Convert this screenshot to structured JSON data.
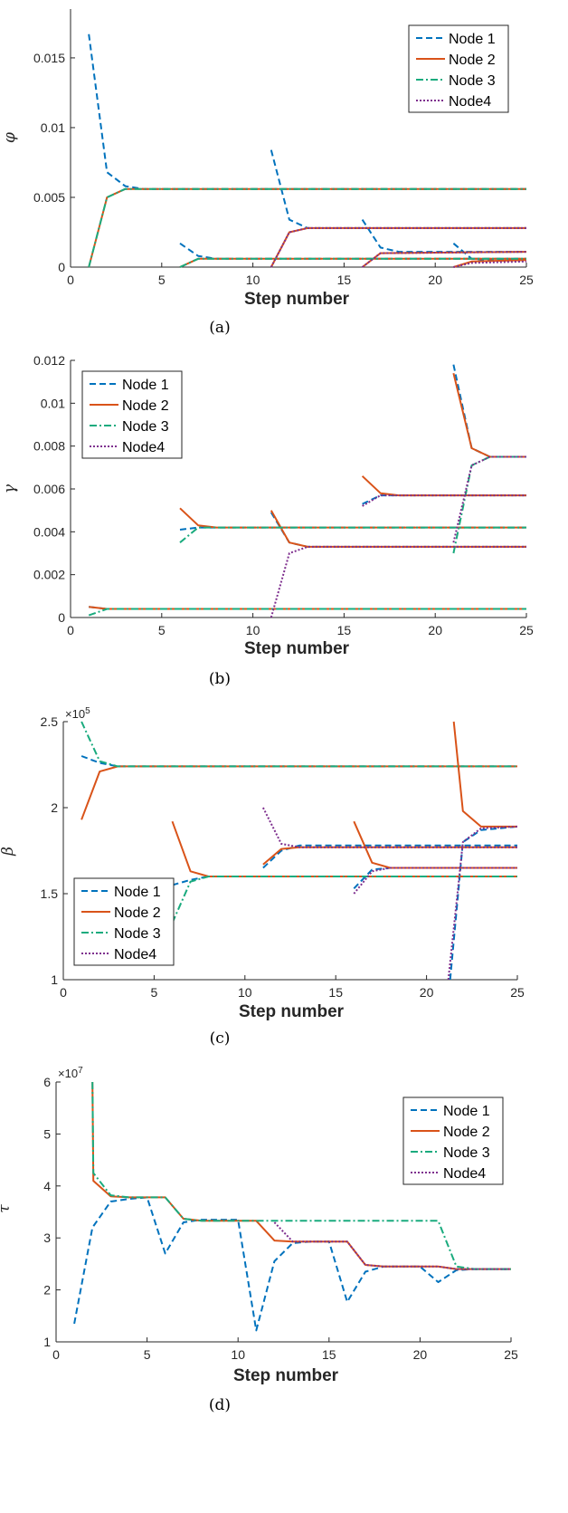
{
  "styles": {
    "Node 1": {
      "color": "#0072BD",
      "dash": "7,4"
    },
    "Node 2": {
      "color": "#D95319",
      "dash": ""
    },
    "Node 3": {
      "color": "#1AAB7E",
      "dash": "8,3,2,3"
    },
    "Node4": {
      "color": "#7E2F8E",
      "dash": "2,2"
    },
    "Node1-alt": {
      "color": "#3A8FDB"
    },
    "Node2-alt": {
      "color": "#E8901C"
    }
  },
  "chart_data": [
    {
      "type": "line",
      "caption": "(a)",
      "xlabel": "Step number",
      "ylabel": "φ",
      "exponent": "",
      "xlim": [
        0,
        25
      ],
      "ylim": [
        0,
        0.0185
      ],
      "xticks": [
        "0",
        "5",
        "10",
        "15",
        "20",
        "25"
      ],
      "yticks": [
        {
          "v": 0,
          "label": "0"
        },
        {
          "v": 0.005,
          "label": "0.005"
        },
        {
          "v": 0.01,
          "label": "0.01"
        },
        {
          "v": 0.015,
          "label": "0.015"
        }
      ],
      "legend": {
        "position": "top-right",
        "entries": [
          "Node 1",
          "Node 2",
          "Node 3",
          "Node4"
        ]
      },
      "series": [
        {
          "name": "Node 1",
          "x": [
            1,
            2,
            3,
            4,
            25
          ],
          "y": [
            0.0167,
            0.0068,
            0.0058,
            0.0056,
            0.0056
          ]
        },
        {
          "name": "Node 1",
          "x": [
            6,
            7,
            8,
            25
          ],
          "y": [
            0.0017,
            0.0008,
            0.0006,
            0.0006
          ]
        },
        {
          "name": "Node 1",
          "x": [
            11,
            12,
            13,
            25
          ],
          "y": [
            0.0084,
            0.0034,
            0.0028,
            0.0028
          ]
        },
        {
          "name": "Node 1",
          "x": [
            16,
            17,
            18,
            25
          ],
          "y": [
            0.0034,
            0.0014,
            0.0011,
            0.0011
          ]
        },
        {
          "name": "Node 1",
          "x": [
            21,
            22,
            23,
            25
          ],
          "y": [
            0.0017,
            0.0006,
            0.0005,
            0.0005
          ]
        },
        {
          "name": "Node 2",
          "x": [
            1,
            2,
            3,
            25
          ],
          "y": [
            0,
            0.005,
            0.0056,
            0.0056
          ]
        },
        {
          "name": "Node 2",
          "x": [
            6,
            7,
            25
          ],
          "y": [
            0,
            0.0006,
            0.0006
          ]
        },
        {
          "name": "Node 2",
          "x": [
            11,
            12,
            13,
            25
          ],
          "y": [
            0,
            0.0025,
            0.0028,
            0.0028
          ]
        },
        {
          "name": "Node 2",
          "x": [
            16,
            17,
            25
          ],
          "y": [
            0,
            0.001,
            0.0011
          ]
        },
        {
          "name": "Node 2",
          "x": [
            21,
            22,
            25
          ],
          "y": [
            0,
            0.0004,
            0.0005
          ]
        },
        {
          "name": "Node 3",
          "x": [
            1,
            2,
            3,
            25
          ],
          "y": [
            0,
            0.005,
            0.0056,
            0.0056
          ]
        },
        {
          "name": "Node 3",
          "x": [
            6,
            7,
            25
          ],
          "y": [
            0,
            0.0006,
            0.0006
          ]
        },
        {
          "name": "Node4",
          "x": [
            11,
            12,
            13,
            25
          ],
          "y": [
            0,
            0.0025,
            0.0028,
            0.0028
          ]
        },
        {
          "name": "Node4",
          "x": [
            16,
            17,
            25
          ],
          "y": [
            0,
            0.001,
            0.0011
          ]
        },
        {
          "name": "Node4",
          "x": [
            21,
            22,
            25
          ],
          "y": [
            0,
            0.0003,
            0.0004
          ]
        }
      ]
    },
    {
      "type": "line",
      "caption": "(b)",
      "xlabel": "Step number",
      "ylabel": "γ",
      "exponent": "",
      "xlim": [
        0,
        25
      ],
      "ylim": [
        0,
        0.012
      ],
      "xticks": [
        "0",
        "5",
        "10",
        "15",
        "20",
        "25"
      ],
      "yticks": [
        {
          "v": 0,
          "label": "0"
        },
        {
          "v": 0.002,
          "label": "0.002"
        },
        {
          "v": 0.004,
          "label": "0.004"
        },
        {
          "v": 0.006,
          "label": "0.006"
        },
        {
          "v": 0.008,
          "label": "0.008"
        },
        {
          "v": 0.01,
          "label": "0.01"
        },
        {
          "v": 0.012,
          "label": "0.012"
        }
      ],
      "legend": {
        "position": "top-left",
        "entries": [
          "Node 1",
          "Node 2",
          "Node 3",
          "Node4"
        ]
      },
      "series": [
        {
          "name": "Node 1",
          "x": [
            1,
            2,
            25
          ],
          "y": [
            0.0005,
            0.0004,
            0.0004
          ]
        },
        {
          "name": "Node 1",
          "x": [
            6,
            7,
            8,
            25
          ],
          "y": [
            0.0041,
            0.0042,
            0.0042,
            0.0042
          ]
        },
        {
          "name": "Node 1",
          "x": [
            11,
            12,
            13,
            25
          ],
          "y": [
            0.0049,
            0.0035,
            0.0033,
            0.0033
          ]
        },
        {
          "name": "Node 1",
          "x": [
            16,
            17,
            25
          ],
          "y": [
            0.0053,
            0.0057,
            0.0057
          ]
        },
        {
          "name": "Node 1",
          "x": [
            21,
            22,
            23,
            25
          ],
          "y": [
            0.0118,
            0.0079,
            0.0075,
            0.0075
          ]
        },
        {
          "name": "Node 2",
          "x": [
            1,
            2,
            25
          ],
          "y": [
            0.0005,
            0.0004,
            0.0004
          ]
        },
        {
          "name": "Node 2",
          "x": [
            6,
            7,
            8,
            25
          ],
          "y": [
            0.0051,
            0.0043,
            0.0042,
            0.0042
          ]
        },
        {
          "name": "Node 2",
          "x": [
            11,
            12,
            13,
            25
          ],
          "y": [
            0.005,
            0.0035,
            0.0033,
            0.0033
          ]
        },
        {
          "name": "Node 2",
          "x": [
            16,
            17,
            18,
            25
          ],
          "y": [
            0.0066,
            0.0058,
            0.0057,
            0.0057
          ]
        },
        {
          "name": "Node 2",
          "x": [
            21,
            22,
            23,
            25
          ],
          "y": [
            0.0114,
            0.0079,
            0.0075,
            0.0075
          ]
        },
        {
          "name": "Node 3",
          "x": [
            1,
            2,
            25
          ],
          "y": [
            0.0001,
            0.0004,
            0.0004
          ]
        },
        {
          "name": "Node 3",
          "x": [
            6,
            7,
            25
          ],
          "y": [
            0.0035,
            0.0042,
            0.0042
          ]
        },
        {
          "name": "Node 3",
          "x": [
            21,
            22,
            23,
            25
          ],
          "y": [
            0.003,
            0.0071,
            0.0075,
            0.0075
          ]
        },
        {
          "name": "Node4",
          "x": [
            11,
            12,
            13,
            25
          ],
          "y": [
            0,
            0.003,
            0.0033,
            0.0033
          ]
        },
        {
          "name": "Node4",
          "x": [
            16,
            17,
            25
          ],
          "y": [
            0.0052,
            0.0057,
            0.0057
          ]
        },
        {
          "name": "Node4",
          "x": [
            21,
            22,
            23,
            25
          ],
          "y": [
            0.0035,
            0.0071,
            0.0075,
            0.0075
          ]
        }
      ]
    },
    {
      "type": "line",
      "caption": "(c)",
      "xlabel": "Step number",
      "ylabel": "β",
      "exponent": "5",
      "xlim": [
        0,
        25
      ],
      "ylim": [
        1,
        2.5
      ],
      "xticks": [
        "0",
        "5",
        "10",
        "15",
        "20",
        "25"
      ],
      "yticks": [
        {
          "v": 1,
          "label": "1"
        },
        {
          "v": 1.5,
          "label": "1.5"
        },
        {
          "v": 2,
          "label": "2"
        },
        {
          "v": 2.5,
          "label": "2.5"
        }
      ],
      "legend": {
        "position": "bottom-left",
        "entries": [
          "Node 1",
          "Node 2",
          "Node 3",
          "Node4"
        ]
      },
      "series": [
        {
          "name": "Node 1",
          "x": [
            1,
            2,
            3,
            25
          ],
          "y": [
            2.3,
            2.26,
            2.24,
            2.24
          ]
        },
        {
          "name": "Node 1",
          "x": [
            6,
            7,
            8,
            25
          ],
          "y": [
            1.55,
            1.58,
            1.6,
            1.6
          ]
        },
        {
          "name": "Node 1",
          "x": [
            11,
            12,
            13,
            25
          ],
          "y": [
            1.65,
            1.75,
            1.78,
            1.78
          ]
        },
        {
          "name": "Node 1",
          "x": [
            16,
            17,
            18,
            25
          ],
          "y": [
            1.53,
            1.64,
            1.65,
            1.65
          ]
        },
        {
          "name": "Node 1",
          "x": [
            21.3,
            22,
            23,
            25
          ],
          "y": [
            1,
            1.8,
            1.87,
            1.89
          ]
        },
        {
          "name": "Node 2",
          "x": [
            1,
            2,
            3,
            25
          ],
          "y": [
            1.93,
            2.21,
            2.24,
            2.24
          ]
        },
        {
          "name": "Node 2",
          "x": [
            6,
            7,
            8,
            25
          ],
          "y": [
            1.92,
            1.63,
            1.6,
            1.6
          ]
        },
        {
          "name": "Node 2",
          "x": [
            11,
            12,
            13,
            25
          ],
          "y": [
            1.67,
            1.76,
            1.77,
            1.77
          ]
        },
        {
          "name": "Node 2",
          "x": [
            16,
            17,
            18,
            25
          ],
          "y": [
            1.92,
            1.68,
            1.65,
            1.65
          ]
        },
        {
          "name": "Node 2",
          "x": [
            21.5,
            22,
            23,
            25
          ],
          "y": [
            2.5,
            1.98,
            1.89,
            1.89
          ]
        },
        {
          "name": "Node 3",
          "x": [
            1,
            2,
            3,
            25
          ],
          "y": [
            2.5,
            2.27,
            2.24,
            2.24
          ]
        },
        {
          "name": "Node 3",
          "x": [
            6,
            7,
            8,
            25
          ],
          "y": [
            1.33,
            1.57,
            1.6,
            1.6
          ]
        },
        {
          "name": "Node4",
          "x": [
            11,
            12,
            13,
            25
          ],
          "y": [
            2.0,
            1.79,
            1.77,
            1.77
          ]
        },
        {
          "name": "Node4",
          "x": [
            16,
            17,
            18,
            25
          ],
          "y": [
            1.5,
            1.63,
            1.65,
            1.65
          ]
        },
        {
          "name": "Node4",
          "x": [
            21.2,
            22,
            23,
            25
          ],
          "y": [
            1,
            1.8,
            1.88,
            1.89
          ]
        }
      ]
    },
    {
      "type": "line",
      "caption": "(d)",
      "xlabel": "Step number",
      "ylabel": "τ",
      "exponent": "7",
      "xlim": [
        0,
        25
      ],
      "ylim": [
        1,
        6
      ],
      "xticks": [
        "0",
        "5",
        "10",
        "15",
        "20",
        "25"
      ],
      "yticks": [
        {
          "v": 1,
          "label": "1"
        },
        {
          "v": 2,
          "label": "2"
        },
        {
          "v": 3,
          "label": "3"
        },
        {
          "v": 4,
          "label": "4"
        },
        {
          "v": 5,
          "label": "5"
        },
        {
          "v": 6,
          "label": "6"
        }
      ],
      "legend": {
        "position": "top-right",
        "entries": [
          "Node 1",
          "Node 2",
          "Node 3",
          "Node4"
        ]
      },
      "series": [
        {
          "name": "Node 1",
          "x": [
            1,
            2,
            3,
            4,
            5,
            6,
            7,
            8,
            9,
            10,
            11,
            12,
            13,
            14,
            15,
            16,
            17,
            18,
            19,
            20,
            21,
            22,
            23,
            24,
            25
          ],
          "y": [
            1.35,
            3.2,
            3.7,
            3.75,
            3.78,
            2.7,
            3.3,
            3.35,
            3.35,
            3.35,
            1.22,
            2.55,
            2.9,
            2.93,
            2.93,
            1.77,
            2.35,
            2.45,
            2.45,
            2.45,
            2.15,
            2.38,
            2.4,
            2.4,
            2.4
          ]
        },
        {
          "name": "Node 2",
          "x": [
            2,
            2.05,
            3,
            4,
            5,
            6,
            7,
            8,
            9,
            10,
            11,
            12,
            13,
            14,
            15,
            16,
            17,
            18,
            19,
            20,
            21,
            22,
            23,
            24,
            25
          ],
          "y": [
            6.0,
            4.1,
            3.8,
            3.78,
            3.78,
            3.78,
            3.37,
            3.33,
            3.33,
            3.33,
            3.33,
            2.95,
            2.93,
            2.93,
            2.93,
            2.93,
            2.48,
            2.45,
            2.45,
            2.45,
            2.45,
            2.4,
            2.4,
            2.4,
            2.4
          ]
        },
        {
          "name": "Node 3",
          "x": [
            2,
            2.05,
            3,
            4,
            5,
            6,
            7,
            8,
            9,
            10,
            11,
            12,
            13,
            14,
            15,
            16,
            17,
            18,
            19,
            20,
            21,
            22,
            23,
            24,
            25
          ],
          "y": [
            6.0,
            4.25,
            3.82,
            3.78,
            3.78,
            3.78,
            3.37,
            3.33,
            3.33,
            3.33,
            3.33,
            3.33,
            3.33,
            3.33,
            3.33,
            3.33,
            3.33,
            3.33,
            3.33,
            3.33,
            3.33,
            2.45,
            2.4,
            2.4,
            2.4
          ]
        },
        {
          "name": "Node4",
          "x": [
            12,
            13,
            14,
            15,
            16,
            17,
            18,
            19,
            20,
            21,
            22,
            23,
            24,
            25
          ],
          "y": [
            3.3,
            2.93,
            2.93,
            2.93,
            2.93,
            2.48,
            2.45,
            2.45,
            2.45,
            2.45,
            2.4,
            2.4,
            2.4,
            2.4
          ]
        }
      ]
    }
  ]
}
